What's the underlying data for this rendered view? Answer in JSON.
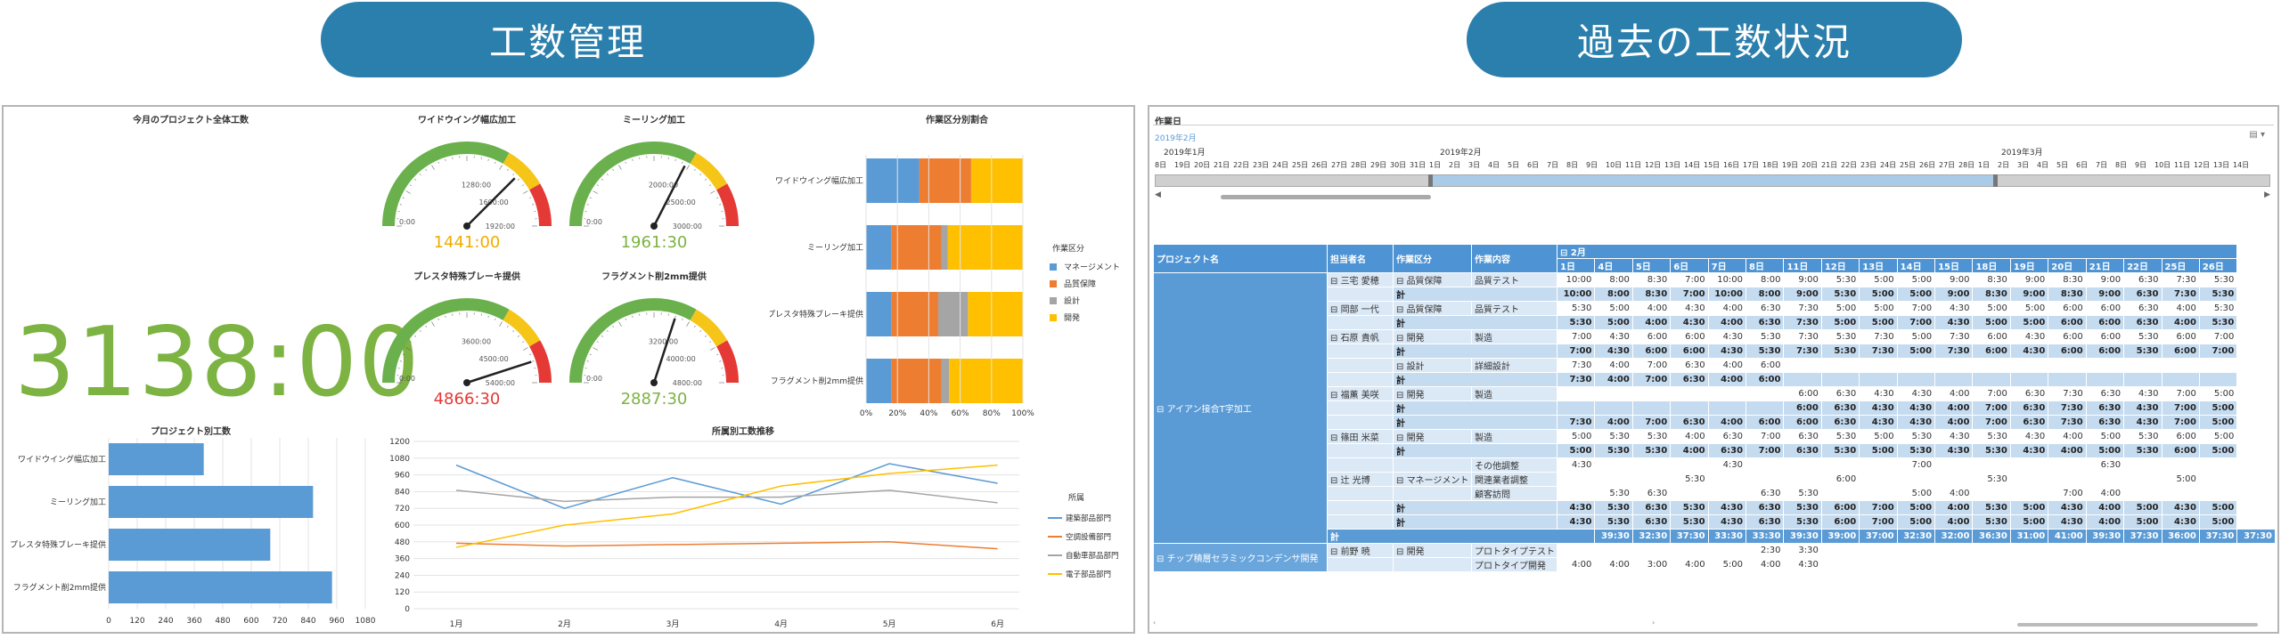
{
  "banners": {
    "left": "工数管理",
    "right": "過去の工数状況"
  },
  "dashboard": {
    "total": {
      "title": "今月のプロジェクト全体工数",
      "value": "3138:00"
    },
    "gauges": [
      {
        "title": "ワイドウイング幅広加工",
        "value": "1441:00",
        "max_label": "1920:00",
        "tick_labels": [
          "0:00",
          "1280:00",
          "1600:00",
          "1920:00"
        ],
        "value_color": "#f0ad00",
        "fraction": 0.75
      },
      {
        "title": "ミーリング加工",
        "value": "1961:30",
        "max_label": "3000:00",
        "tick_labels": [
          "0:00",
          "2000:00",
          "2500:00",
          "3000:00"
        ],
        "value_color": "#7cb342",
        "fraction": 0.65
      },
      {
        "title": "プレスタ特殊ブレーキ提供",
        "value": "4866:30",
        "max_label": "5400:00",
        "tick_labels": [
          "0:00",
          "3600:00",
          "4500:00",
          "5400:00"
        ],
        "value_color": "#e53935",
        "fraction": 0.9
      },
      {
        "title": "フラグメント削2mm提供",
        "value": "2887:30",
        "max_label": "4800:00",
        "tick_labels": [
          "0:00",
          "3200:00",
          "4000:00",
          "4800:00"
        ],
        "value_color": "#7cb342",
        "fraction": 0.6
      }
    ],
    "colors": {
      "green": "#6ab04c",
      "yellow": "#f5c518",
      "red": "#e53935",
      "blue": "#5b9bd5",
      "orange": "#ed7d31",
      "gray": "#a5a5a5",
      "gold": "#ffc000"
    }
  },
  "chart_data": [
    {
      "type": "bar",
      "orientation": "horizontal",
      "stacked": "percent",
      "title": "作業区分別割合",
      "categories": [
        "ワイドウイング幅広加工",
        "ミーリング加工",
        "プレスタ特殊ブレーキ提供",
        "フラグメント削2mm提供"
      ],
      "series": [
        {
          "name": "マネージメント",
          "values": [
            34,
            16,
            16,
            16
          ],
          "color": "#5b9bd5"
        },
        {
          "name": "品質保障",
          "values": [
            33,
            32,
            30,
            32
          ],
          "color": "#ed7d31"
        },
        {
          "name": "設計",
          "values": [
            0,
            4,
            19,
            5
          ],
          "color": "#a5a5a5"
        },
        {
          "name": "開発",
          "values": [
            33,
            48,
            35,
            47
          ],
          "color": "#ffc000"
        }
      ],
      "legend_title": "作業区分",
      "xticks": [
        "0%",
        "20%",
        "40%",
        "60%",
        "80%",
        "100%"
      ]
    },
    {
      "type": "bar",
      "orientation": "horizontal",
      "title": "プロジェクト別工数",
      "categories": [
        "ワイドウイング幅広加工",
        "ミーリング加工",
        "プレスタ特殊ブレーキ提供",
        "フラグメント削2mm提供"
      ],
      "values": [
        400,
        860,
        680,
        940
      ],
      "xlim": [
        0,
        1080
      ],
      "xticks": [
        "0",
        "120",
        "240",
        "360",
        "480",
        "600",
        "720",
        "840",
        "960",
        "1080"
      ],
      "color": "#5b9bd5"
    },
    {
      "type": "line",
      "title": "所属別工数推移",
      "x": [
        "1月",
        "2月",
        "3月",
        "4月",
        "5月",
        "6月"
      ],
      "ylim": [
        0,
        1200
      ],
      "yticks": [
        "0",
        "120",
        "240",
        "360",
        "480",
        "600",
        "720",
        "840",
        "960",
        "1080",
        "1200"
      ],
      "legend_title": "所属",
      "series": [
        {
          "name": "建築部品部門",
          "values": [
            1030,
            720,
            940,
            750,
            1040,
            900
          ],
          "color": "#5b9bd5"
        },
        {
          "name": "空調設備部門",
          "values": [
            470,
            450,
            460,
            470,
            480,
            430
          ],
          "color": "#ed7d31"
        },
        {
          "name": "自動車部品部門",
          "values": [
            850,
            770,
            800,
            800,
            850,
            760
          ],
          "color": "#a5a5a5"
        },
        {
          "name": "電子部品部門",
          "values": [
            440,
            600,
            680,
            880,
            970,
            1030
          ],
          "color": "#ffc000"
        }
      ]
    }
  ],
  "history": {
    "title": "作業日",
    "subtitle": "2019年2月",
    "months": [
      "2019年1月",
      "2019年2月",
      "2019年3月"
    ],
    "days": [
      "8日",
      "19日",
      "20日",
      "21日",
      "22日",
      "23日",
      "24日",
      "25日",
      "26日",
      "27日",
      "28日",
      "29日",
      "30日",
      "31日",
      "1日",
      "2日",
      "3日",
      "4日",
      "5日",
      "6日",
      "7日",
      "8日",
      "9日",
      "10日",
      "11日",
      "12日",
      "13日",
      "14日",
      "15日",
      "16日",
      "17日",
      "18日",
      "19日",
      "20日",
      "21日",
      "22日",
      "23日",
      "24日",
      "25日",
      "26日",
      "27日",
      "28日",
      "1日",
      "2日",
      "3日",
      "4日",
      "5日",
      "6日",
      "7日",
      "8日",
      "9日",
      "10日",
      "11日",
      "12日",
      "13日",
      "14日"
    ],
    "columns": {
      "project": "プロジェクト名",
      "person": "担当者名",
      "category": "作業区分",
      "content": "作業内容",
      "month": "2月"
    },
    "day_headers": [
      "1日",
      "4日",
      "5日",
      "6日",
      "7日",
      "8日",
      "11日",
      "12日",
      "13日",
      "14日",
      "15日",
      "18日",
      "19日",
      "20日",
      "21日",
      "22日",
      "25日",
      "26日"
    ],
    "projects": [
      {
        "name": "アイアン接合T字加工"
      },
      {
        "name": "チップ積層セラミックコンデンサ開発"
      }
    ],
    "sum_label": "計",
    "rows": [
      {
        "kind": "data",
        "person": "三宅 愛穂",
        "category": "品質保障",
        "content": "品質テスト",
        "vals": [
          "10:00",
          "8:00",
          "8:30",
          "7:00",
          "10:00",
          "8:00",
          "9:00",
          "5:30",
          "5:00",
          "5:00",
          "9:00",
          "8:30",
          "9:00",
          "8:30",
          "9:00",
          "6:30",
          "7:30",
          "5:30"
        ]
      },
      {
        "kind": "sum",
        "vals": [
          "10:00",
          "8:00",
          "8:30",
          "7:00",
          "10:00",
          "8:00",
          "9:00",
          "5:30",
          "5:00",
          "5:00",
          "9:00",
          "8:30",
          "9:00",
          "8:30",
          "9:00",
          "6:30",
          "7:30",
          "5:30"
        ]
      },
      {
        "kind": "data",
        "person": "岡部 一代",
        "category": "品質保障",
        "content": "品質テスト",
        "vals": [
          "5:30",
          "5:00",
          "4:00",
          "4:30",
          "4:00",
          "6:30",
          "7:30",
          "5:00",
          "5:00",
          "7:00",
          "4:30",
          "5:00",
          "5:00",
          "6:00",
          "6:00",
          "6:30",
          "4:00",
          "5:30"
        ]
      },
      {
        "kind": "sum",
        "vals": [
          "5:30",
          "5:00",
          "4:00",
          "4:30",
          "4:00",
          "6:30",
          "7:30",
          "5:00",
          "5:00",
          "7:00",
          "4:30",
          "5:00",
          "5:00",
          "6:00",
          "6:00",
          "6:30",
          "4:00",
          "5:30"
        ]
      },
      {
        "kind": "data",
        "person": "石原 貴帆",
        "category": "開発",
        "content": "製造",
        "vals": [
          "7:00",
          "4:30",
          "6:00",
          "6:00",
          "4:30",
          "5:30",
          "7:30",
          "5:30",
          "7:30",
          "5:00",
          "7:30",
          "6:00",
          "4:30",
          "6:00",
          "6:00",
          "5:30",
          "6:00",
          "7:00"
        ]
      },
      {
        "kind": "sum",
        "vals": [
          "7:00",
          "4:30",
          "6:00",
          "6:00",
          "4:30",
          "5:30",
          "7:30",
          "5:30",
          "7:30",
          "5:00",
          "7:30",
          "6:00",
          "4:30",
          "6:00",
          "6:00",
          "5:30",
          "6:00",
          "7:00"
        ]
      },
      {
        "kind": "data",
        "person": "",
        "category": "設計",
        "content": "詳細設計",
        "vals": [
          "7:30",
          "4:00",
          "7:00",
          "6:30",
          "4:00",
          "6:00",
          "",
          "",
          "",
          "",
          "",
          "",
          "",
          "",
          "",
          "",
          "",
          ""
        ]
      },
      {
        "kind": "sum",
        "vals": [
          "7:30",
          "4:00",
          "7:00",
          "6:30",
          "4:00",
          "6:00",
          "",
          "",
          "",
          "",
          "",
          "",
          "",
          "",
          "",
          "",
          "",
          ""
        ]
      },
      {
        "kind": "data",
        "person": "福薫 美咲",
        "category": "開発",
        "content": "製造",
        "vals": [
          "",
          "",
          "",
          "",
          "",
          "",
          "6:00",
          "6:30",
          "4:30",
          "4:30",
          "4:00",
          "7:00",
          "6:30",
          "7:30",
          "6:30",
          "4:30",
          "7:00",
          "5:00"
        ]
      },
      {
        "kind": "sum",
        "vals": [
          "",
          "",
          "",
          "",
          "",
          "",
          "6:00",
          "6:30",
          "4:30",
          "4:30",
          "4:00",
          "7:00",
          "6:30",
          "7:30",
          "6:30",
          "4:30",
          "7:00",
          "5:00"
        ]
      },
      {
        "kind": "sum",
        "vals": [
          "7:30",
          "4:00",
          "7:00",
          "6:30",
          "4:00",
          "6:00",
          "6:00",
          "6:30",
          "4:30",
          "4:30",
          "4:00",
          "7:00",
          "6:30",
          "7:30",
          "6:30",
          "4:30",
          "7:00",
          "5:00"
        ]
      },
      {
        "kind": "data",
        "person": "篠田 米菜",
        "category": "開発",
        "content": "製造",
        "vals": [
          "5:00",
          "5:30",
          "5:30",
          "4:00",
          "6:30",
          "7:00",
          "6:30",
          "5:30",
          "5:00",
          "5:30",
          "4:30",
          "5:30",
          "4:30",
          "4:00",
          "5:00",
          "5:30",
          "6:00",
          "5:00"
        ]
      },
      {
        "kind": "sum",
        "vals": [
          "5:00",
          "5:30",
          "5:30",
          "4:00",
          "6:30",
          "7:00",
          "6:30",
          "5:30",
          "5:00",
          "5:30",
          "4:30",
          "5:30",
          "4:30",
          "4:00",
          "5:00",
          "5:30",
          "6:00",
          "5:00"
        ]
      },
      {
        "kind": "data",
        "person": "",
        "category": "",
        "content": "その他調整",
        "vals": [
          "4:30",
          "",
          "",
          "",
          "4:30",
          "",
          "",
          "",
          "",
          "7:00",
          "",
          "",
          "",
          "",
          "6:30",
          "",
          "",
          ""
        ]
      },
      {
        "kind": "data",
        "person": "辻 光博",
        "category": "マネージメント",
        "content": "関連業者調整",
        "vals": [
          "",
          "",
          "",
          "5:30",
          "",
          "",
          "",
          "6:00",
          "",
          "",
          "",
          "5:30",
          "",
          "",
          "",
          "",
          "5:00",
          ""
        ]
      },
      {
        "kind": "data",
        "person": "",
        "category": "",
        "content": "顧客訪問",
        "vals": [
          "",
          "5:30",
          "6:30",
          "",
          "",
          "6:30",
          "5:30",
          "",
          "",
          "5:00",
          "4:00",
          "",
          "",
          "7:00",
          "4:00",
          "",
          "",
          ""
        ]
      },
      {
        "kind": "sum",
        "vals": [
          "4:30",
          "5:30",
          "6:30",
          "5:30",
          "4:30",
          "6:30",
          "5:30",
          "6:00",
          "7:00",
          "5:00",
          "4:00",
          "5:30",
          "5:00",
          "4:30",
          "4:00",
          "5:00",
          "4:30",
          "5:00"
        ]
      },
      {
        "kind": "sum",
        "vals": [
          "4:30",
          "5:30",
          "6:30",
          "5:30",
          "4:30",
          "6:30",
          "5:30",
          "6:00",
          "7:00",
          "5:00",
          "4:00",
          "5:30",
          "5:00",
          "4:30",
          "4:00",
          "5:00",
          "4:30",
          "5:00"
        ]
      },
      {
        "kind": "total",
        "vals": [
          "39:30",
          "32:30",
          "37:30",
          "33:30",
          "33:30",
          "39:30",
          "39:00",
          "37:00",
          "32:30",
          "32:00",
          "36:30",
          "31:00",
          "41:00",
          "39:30",
          "37:30",
          "36:00",
          "37:30",
          "37:30"
        ]
      },
      {
        "kind": "data2",
        "person": "前野 暁",
        "category": "開発",
        "content": "プロトタイプテスト",
        "vals": [
          "",
          "",
          "",
          "",
          "",
          "2:30",
          "3:30",
          "",
          "",
          "",
          "",
          "",
          "",
          "",
          "",
          "",
          "",
          ""
        ]
      },
      {
        "kind": "data2",
        "person": "",
        "category": "",
        "content": "プロトタイプ開発",
        "vals": [
          "4:00",
          "4:00",
          "3:00",
          "4:00",
          "5:00",
          "4:00",
          "4:30",
          "",
          "",
          "",
          "",
          "",
          "",
          "",
          "",
          "",
          "",
          ""
        ]
      }
    ]
  }
}
